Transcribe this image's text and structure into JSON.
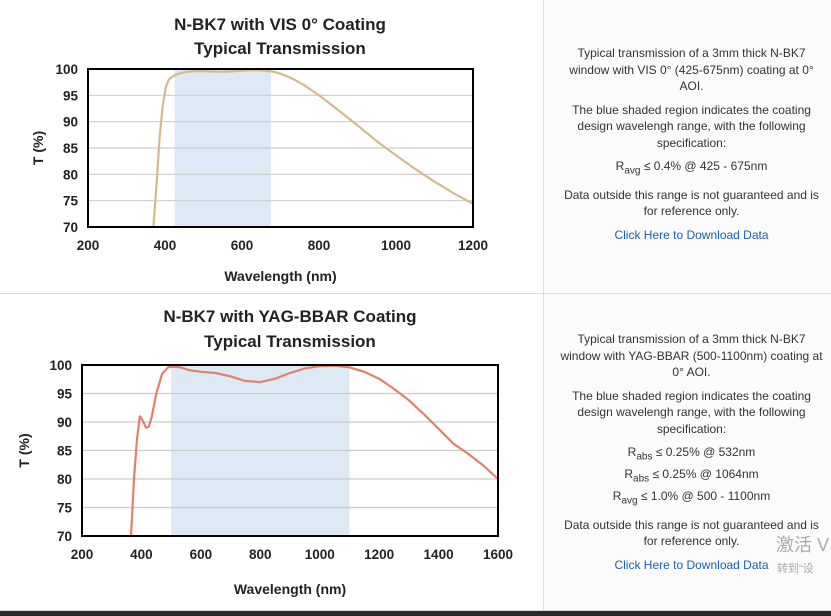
{
  "colors": {
    "shade": "#dde9f5",
    "grid": "#cccccc",
    "axis": "#000000",
    "curve1": "#d4b98c",
    "curve2": "#e2806d",
    "link": "#1a5fb4"
  },
  "panels": [
    {
      "description": "Typical transmission of a 3mm thick N-BK7 window with VIS 0° (425-675nm) coating at 0° AOI.",
      "shading_note": "The blue shaded region indicates the coating design wavelengh range, with the following specification:",
      "specs": [
        {
          "symbol": "R",
          "sub": "avg",
          "text": "≤ 0.4% @ 425 - 675nm"
        }
      ],
      "disclaimer": "Data outside this range is not guaranteed and is for reference only.",
      "link_text": "Click Here to Download Data"
    },
    {
      "description": "Typical transmission of a 3mm thick N-BK7 window with YAG-BBAR (500-1100nm) coating at 0° AOI.",
      "shading_note": "The blue shaded region indicates the coating design wavelengh range, with the following specification:",
      "specs": [
        {
          "symbol": "R",
          "sub": "abs",
          "text": "≤ 0.25% @ 532nm"
        },
        {
          "symbol": "R",
          "sub": "abs",
          "text": "≤ 0.25% @ 1064nm"
        },
        {
          "symbol": "R",
          "sub": "avg",
          "text": "≤ 1.0% @ 500 - 1100nm"
        }
      ],
      "disclaimer": "Data outside this range is not guaranteed and is for reference only.",
      "link_text": "Click Here to Download Data"
    }
  ],
  "watermark": {
    "line1": "激活 V",
    "line2": "转到“设"
  },
  "chart_data": [
    {
      "type": "line",
      "title": [
        "N-BK7 with VIS 0° Coating",
        "Typical Transmission"
      ],
      "xlabel": "Wavelength (nm)",
      "ylabel": "T (%)",
      "xlim": [
        200,
        1200
      ],
      "ylim": [
        70,
        100
      ],
      "xticks": [
        200,
        400,
        600,
        800,
        1000,
        1200
      ],
      "yticks": [
        70,
        75,
        80,
        85,
        90,
        95,
        100
      ],
      "grid": "horizontal",
      "shaded_range": [
        425,
        675
      ],
      "series": [
        {
          "x": [
            370,
            378,
            386,
            394,
            402,
            410,
            420,
            430,
            445,
            460,
            480,
            500,
            530,
            560,
            600,
            630,
            660,
            680,
            700,
            730,
            760,
            800,
            850,
            900,
            950,
            1000,
            1050,
            1100,
            1150,
            1200
          ],
          "y": [
            70,
            78,
            87,
            93,
            96.5,
            98,
            98.6,
            99,
            99.3,
            99.5,
            99.6,
            99.6,
            99.5,
            99.5,
            99.7,
            99.8,
            99.7,
            99.5,
            99.1,
            98.2,
            97.0,
            95.0,
            92.2,
            89.3,
            86.3,
            83.6,
            81.0,
            78.6,
            76.4,
            74.4
          ]
        }
      ]
    },
    {
      "type": "line",
      "title": [
        "N-BK7 with YAG-BBAR Coating",
        "Typical Transmission"
      ],
      "xlabel": "Wavelength (nm)",
      "ylabel": "T (%)",
      "xlim": [
        200,
        1600
      ],
      "ylim": [
        70,
        100
      ],
      "xticks": [
        200,
        400,
        600,
        800,
        1000,
        1200,
        1400,
        1600
      ],
      "yticks": [
        70,
        75,
        80,
        85,
        90,
        95,
        100
      ],
      "grid": "horizontal",
      "shaded_range": [
        500,
        1100
      ],
      "series": [
        {
          "x": [
            365,
            375,
            385,
            395,
            405,
            415,
            425,
            435,
            450,
            470,
            490,
            510,
            530,
            560,
            600,
            650,
            700,
            750,
            800,
            850,
            900,
            950,
            1000,
            1050,
            1100,
            1150,
            1200,
            1250,
            1300,
            1350,
            1400,
            1450,
            1500,
            1550,
            1600
          ],
          "y": [
            70,
            80,
            87,
            91,
            90.2,
            89,
            89.2,
            91,
            95,
            98.5,
            99.6,
            99.7,
            99.6,
            99.1,
            98.8,
            98.6,
            98.0,
            97.2,
            97.0,
            97.6,
            98.6,
            99.4,
            99.8,
            99.9,
            99.6,
            98.8,
            97.6,
            95.8,
            93.8,
            91.4,
            88.8,
            86.2,
            84.4,
            82.4,
            80.0
          ]
        }
      ]
    }
  ]
}
